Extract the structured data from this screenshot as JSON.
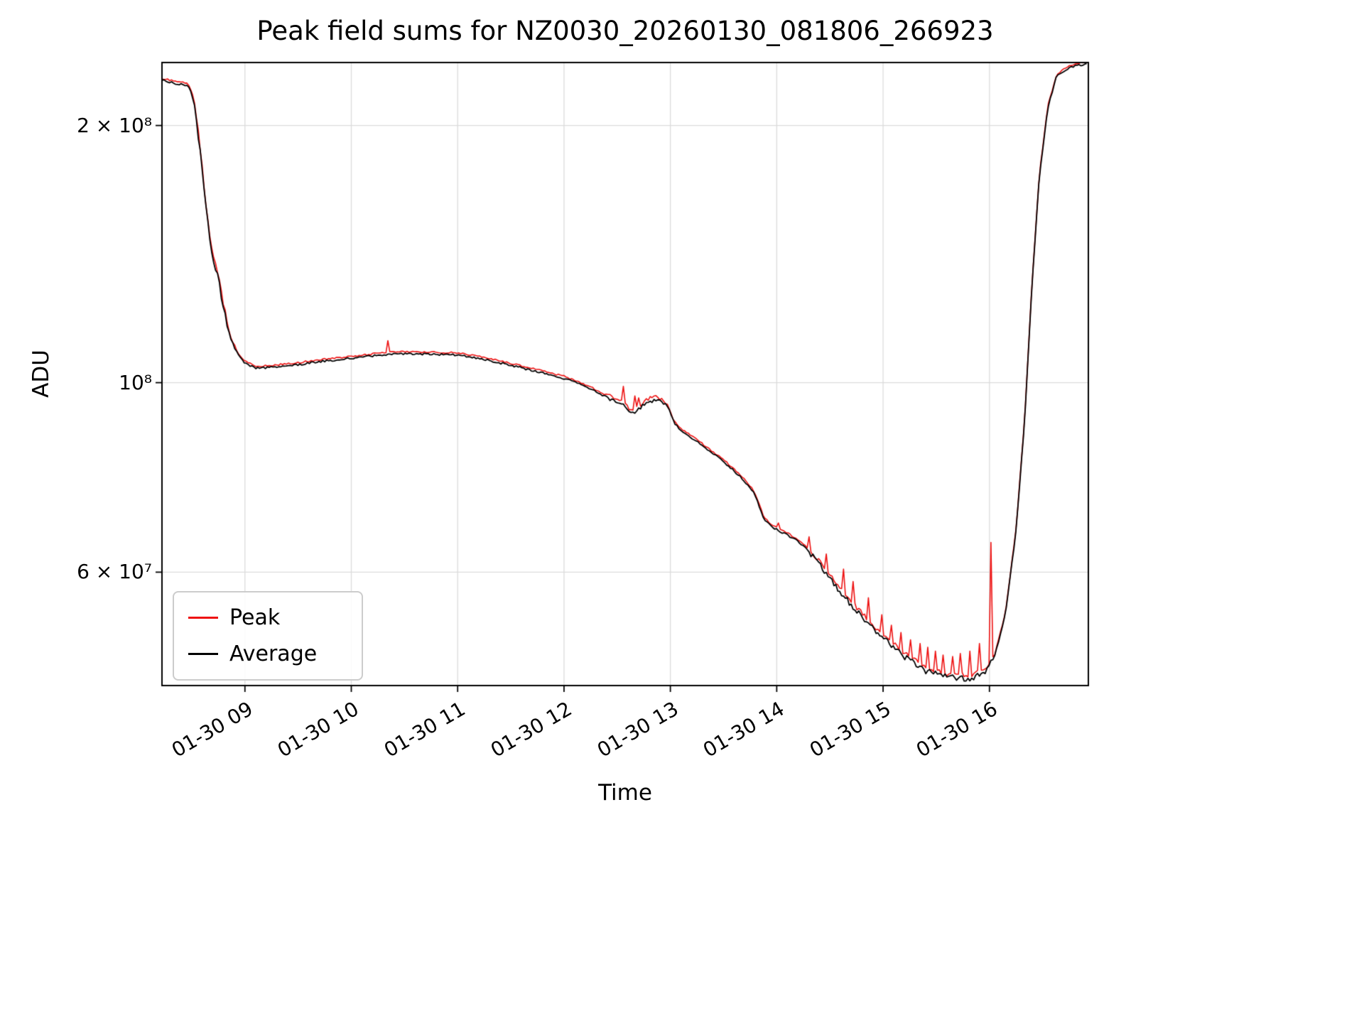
{
  "figure": {
    "title": "Peak field sums for NZ0030_20260130_081806_266923",
    "xlabel": "Time",
    "ylabel": "ADU"
  },
  "chart_data": {
    "type": "line",
    "title": "Peak field sums for NZ0030_20260130_081806_266923",
    "xlabel": "Time",
    "ylabel": "ADU",
    "grid": true,
    "legend_position": "lower-left",
    "x_axis": {
      "unit": "hours on 2026-01-30",
      "range_hours": [
        8.22,
        16.93
      ],
      "tick_values": [
        9,
        10,
        11,
        12,
        13,
        14,
        15,
        16
      ],
      "tick_labels": [
        "01-30 09",
        "01-30 10",
        "01-30 11",
        "01-30 12",
        "01-30 13",
        "01-30 14",
        "01-30 15",
        "01-30 16"
      ]
    },
    "y_axis": {
      "scale": "log",
      "range": [
        44200000.0,
        237000000.0
      ],
      "tick_values": [
        200000000.0,
        100000000.0,
        60000000.0
      ],
      "tick_labels": [
        "2 × 10⁸",
        "10⁸",
        "6 × 10⁷"
      ]
    },
    "series": [
      {
        "name": "Peak",
        "color": "#ee1111",
        "follows": "Average",
        "spikes": [
          [
            10.35,
            112000000.0
          ],
          [
            12.56,
            99000000.0
          ],
          [
            12.66,
            96500000.0
          ],
          [
            12.71,
            96000000.0
          ],
          [
            14.02,
            68500000.0
          ],
          [
            14.3,
            66000000.0
          ],
          [
            14.46,
            63000000.0
          ],
          [
            14.63,
            60500000.0
          ],
          [
            14.72,
            58500000.0
          ],
          [
            14.87,
            56000000.0
          ],
          [
            14.98,
            53500000.0
          ],
          [
            15.08,
            52000000.0
          ],
          [
            15.16,
            51000000.0
          ],
          [
            15.26,
            50000000.0
          ],
          [
            15.34,
            49500000.0
          ],
          [
            15.42,
            49000000.0
          ],
          [
            15.5,
            48500000.0
          ],
          [
            15.57,
            48000000.0
          ],
          [
            15.65,
            47800000.0
          ],
          [
            15.73,
            48200000.0
          ],
          [
            15.82,
            48500000.0
          ],
          [
            15.9,
            49500000.0
          ],
          [
            16.02,
            65000000.0
          ]
        ]
      },
      {
        "name": "Average",
        "color": "#000000",
        "keypoints": [
          [
            8.22,
            226000000.0
          ],
          [
            8.35,
            224000000.0
          ],
          [
            8.46,
            223000000.0
          ],
          [
            8.5,
            218000000.0
          ],
          [
            8.53,
            210000000.0
          ],
          [
            8.58,
            186000000.0
          ],
          [
            8.63,
            162000000.0
          ],
          [
            8.67,
            146000000.0
          ],
          [
            8.7,
            140000000.0
          ],
          [
            8.74,
            134000000.0
          ],
          [
            8.8,
            122000000.0
          ],
          [
            8.86,
            113000000.0
          ],
          [
            8.93,
            108000000.0
          ],
          [
            9.0,
            105500000.0
          ],
          [
            9.1,
            104000000.0
          ],
          [
            9.25,
            104200000.0
          ],
          [
            9.5,
            105000000.0
          ],
          [
            9.75,
            106000000.0
          ],
          [
            10.0,
            106800000.0
          ],
          [
            10.2,
            107500000.0
          ],
          [
            10.45,
            108200000.0
          ],
          [
            10.7,
            108000000.0
          ],
          [
            11.0,
            107800000.0
          ],
          [
            11.2,
            106800000.0
          ],
          [
            11.5,
            104800000.0
          ],
          [
            11.75,
            103000000.0
          ],
          [
            12.0,
            101200000.0
          ],
          [
            12.2,
            99000000.0
          ],
          [
            12.4,
            96200000.0
          ],
          [
            12.55,
            94200000.0
          ],
          [
            12.63,
            92200000.0
          ],
          [
            12.7,
            93000000.0
          ],
          [
            12.78,
            95000000.0
          ],
          [
            12.88,
            95500000.0
          ],
          [
            12.97,
            93800000.0
          ],
          [
            13.03,
            90000000.0
          ],
          [
            13.1,
            87800000.0
          ],
          [
            13.2,
            86200000.0
          ],
          [
            13.35,
            83500000.0
          ],
          [
            13.5,
            80800000.0
          ],
          [
            13.65,
            77800000.0
          ],
          [
            13.78,
            74500000.0
          ],
          [
            13.83,
            72000000.0
          ],
          [
            13.88,
            69200000.0
          ],
          [
            13.95,
            67800000.0
          ],
          [
            14.05,
            66800000.0
          ],
          [
            14.15,
            65800000.0
          ],
          [
            14.25,
            64500000.0
          ],
          [
            14.4,
            61200000.0
          ],
          [
            14.6,
            56800000.0
          ],
          [
            14.8,
            53200000.0
          ],
          [
            15.0,
            50200000.0
          ],
          [
            15.2,
            47800000.0
          ],
          [
            15.4,
            46000000.0
          ],
          [
            15.6,
            45200000.0
          ],
          [
            15.8,
            45000000.0
          ],
          [
            15.95,
            45600000.0
          ],
          [
            16.05,
            47800000.0
          ],
          [
            16.15,
            53500000.0
          ],
          [
            16.25,
            67000000.0
          ],
          [
            16.33,
            90000000.0
          ],
          [
            16.4,
            130000000.0
          ],
          [
            16.47,
            175000000.0
          ],
          [
            16.55,
            210000000.0
          ],
          [
            16.63,
            228000000.0
          ],
          [
            16.75,
            234000000.0
          ],
          [
            16.93,
            236500000.0
          ]
        ]
      }
    ]
  }
}
